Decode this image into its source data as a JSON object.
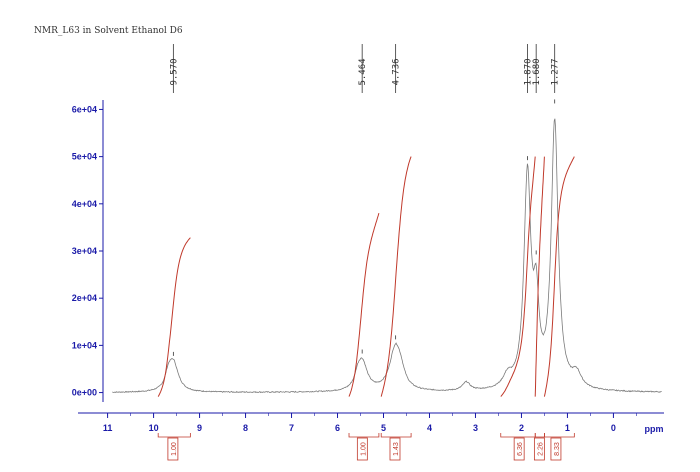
{
  "chart_data": {
    "type": "line",
    "title": "NMR_L63 in Solvent Ethanol D6",
    "xlabel": "ppm",
    "xlim": [
      11.1,
      -1.1
    ],
    "ylim": [
      -2000,
      62000
    ],
    "x_ticks": [
      11,
      10,
      9,
      8,
      7,
      6,
      5,
      4,
      3,
      2,
      1,
      0
    ],
    "y_ticks": [
      {
        "value": 0,
        "label": "0e+00"
      },
      {
        "value": 10000,
        "label": "1e+04"
      },
      {
        "value": 20000,
        "label": "2e+04"
      },
      {
        "value": 30000,
        "label": "3e+04"
      },
      {
        "value": 40000,
        "label": "4e+04"
      },
      {
        "value": 50000,
        "label": "5e+04"
      },
      {
        "value": 60000,
        "label": "6e+04"
      }
    ],
    "peaks": [
      {
        "ppm": 9.57,
        "label": "9.570",
        "intensity": 6500
      },
      {
        "ppm": 5.464,
        "label": "5.464",
        "intensity": 7000
      },
      {
        "ppm": 4.736,
        "label": "4.736",
        "intensity": 10000
      },
      {
        "ppm": 1.87,
        "label": "1.870",
        "intensity": 48000
      },
      {
        "ppm": 1.68,
        "label": "1.680",
        "intensity": 28000
      },
      {
        "ppm": 1.277,
        "label": "1.277",
        "intensity": 60000
      }
    ],
    "integrals": [
      {
        "from": 9.9,
        "to": 9.2,
        "value": "1.00",
        "label_ppm": 9.58
      },
      {
        "from": 5.75,
        "to": 5.1,
        "value": "1.00",
        "label_ppm": 5.46
      },
      {
        "from": 5.05,
        "to": 4.4,
        "value": "1.43",
        "label_ppm": 4.75
      },
      {
        "from": 2.45,
        "to": 1.7,
        "value": "6.36",
        "label_ppm": 2.05
      },
      {
        "from": 1.7,
        "to": 1.5,
        "value": "2.26",
        "label_ppm": 1.61
      },
      {
        "from": 1.5,
        "to": 0.85,
        "value": "8.33",
        "label_ppm": 1.25
      }
    ],
    "spectrum_components": [
      {
        "center": 9.57,
        "height": 6200,
        "width": 0.13
      },
      {
        "center": 9.68,
        "height": 2500,
        "width": 0.08
      },
      {
        "center": 5.46,
        "height": 6000,
        "width": 0.13
      },
      {
        "center": 5.56,
        "height": 2000,
        "width": 0.08
      },
      {
        "center": 4.74,
        "height": 9200,
        "width": 0.15
      },
      {
        "center": 4.62,
        "height": 2000,
        "width": 0.1
      },
      {
        "center": 3.2,
        "height": 1800,
        "width": 0.1
      },
      {
        "center": 2.3,
        "height": 2500,
        "width": 0.12
      },
      {
        "center": 1.87,
        "height": 45000,
        "width": 0.09
      },
      {
        "center": 1.68,
        "height": 16000,
        "width": 0.07
      },
      {
        "center": 1.277,
        "height": 56500,
        "width": 0.09
      },
      {
        "center": 0.8,
        "height": 3000,
        "width": 0.12
      }
    ],
    "grid": false,
    "colors": {
      "axis": "#1a1aa8",
      "spectrum": "#7a7a7a",
      "integral": "#c0392b",
      "text": "#333333"
    }
  }
}
